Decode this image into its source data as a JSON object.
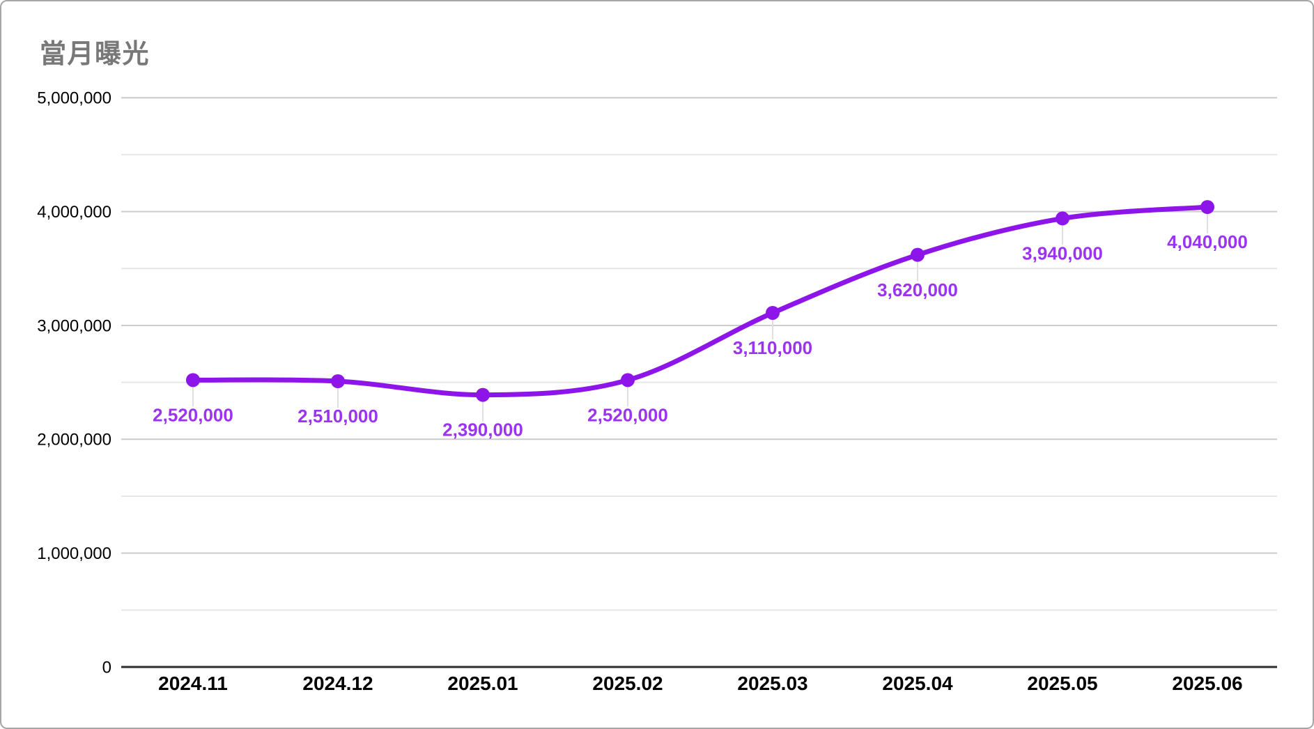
{
  "chart_data": {
    "type": "line",
    "title": "當月曝光",
    "categories": [
      "2024.11",
      "2024.12",
      "2025.01",
      "2025.02",
      "2025.03",
      "2025.04",
      "2025.05",
      "2025.06"
    ],
    "series": [
      {
        "name": "當月曝光",
        "values": [
          2520000,
          2510000,
          2390000,
          2520000,
          3110000,
          3620000,
          3940000,
          4040000
        ],
        "data_labels": [
          "2,520,000",
          "2,510,000",
          "2,390,000",
          "2,520,000",
          "3,110,000",
          "3,620,000",
          "3,940,000",
          "4,040,000"
        ]
      }
    ],
    "xlabel": "",
    "ylabel": "",
    "ylim": [
      0,
      5000000
    ],
    "y_major_ticks": [
      {
        "value": 0,
        "label": "0"
      },
      {
        "value": 1000000,
        "label": "1,000,000"
      },
      {
        "value": 2000000,
        "label": "2,000,000"
      },
      {
        "value": 3000000,
        "label": "3,000,000"
      },
      {
        "value": 4000000,
        "label": "4,000,000"
      },
      {
        "value": 5000000,
        "label": "5,000,000"
      }
    ],
    "y_minor_tick_step": 500000,
    "grid": "horizontal-major-and-minor",
    "legend": "none",
    "line_style": "smooth",
    "marker_style": "filled-circle",
    "colors": {
      "series": "#8e15ea",
      "data_label": "#9c33f0",
      "title": "#787878",
      "grid_major": "#cccccc",
      "grid_minor": "#e7e7e7",
      "axis_line": "#2e2e2e",
      "tick_label": "#000000",
      "leader_line": "#e0e0e0",
      "background": "#ffffff",
      "card_border": "#a6a6a6"
    }
  }
}
